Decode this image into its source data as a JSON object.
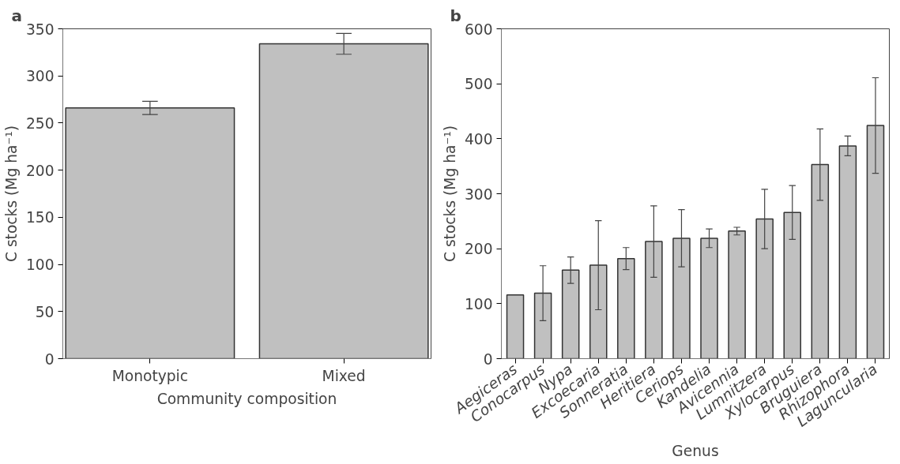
{
  "chart_data": [
    {
      "type": "bar",
      "title": "a",
      "xlabel": "Community composition",
      "ylabel": "C stocks (Mg ha⁻¹)",
      "categories": [
        "Monotypic",
        "Mixed"
      ],
      "values": [
        266,
        334
      ],
      "errors": [
        7,
        11
      ],
      "color": "#c0c0c0",
      "ylim": [
        0,
        350
      ],
      "yticks": [
        0,
        50,
        100,
        150,
        200,
        250,
        300,
        350
      ],
      "grid": false
    },
    {
      "type": "bar",
      "title": "b",
      "xlabel": "Genus",
      "ylabel": "C stocks (Mg ha⁻¹)",
      "categories": [
        "Aegiceras",
        "Conocarpus",
        "Nypa",
        "Excoecaria",
        "Sonneratia",
        "Heritiera",
        "Ceriops",
        "Kandelia",
        "Avicennia",
        "Lumnitzera",
        "Xylocarpus",
        "Bruguiera",
        "Rhizophora",
        "Laguncularia"
      ],
      "values": [
        116,
        119,
        161,
        170,
        182,
        213,
        219,
        219,
        232,
        254,
        266,
        353,
        387,
        424
      ],
      "errors": [
        null,
        50,
        24,
        81,
        20,
        65,
        52,
        17,
        7,
        54,
        49,
        65,
        18,
        87
      ],
      "color": "#c0c0c0",
      "ylim": [
        0,
        600
      ],
      "yticks": [
        0,
        100,
        200,
        300,
        400,
        500,
        600
      ],
      "grid": false
    }
  ]
}
